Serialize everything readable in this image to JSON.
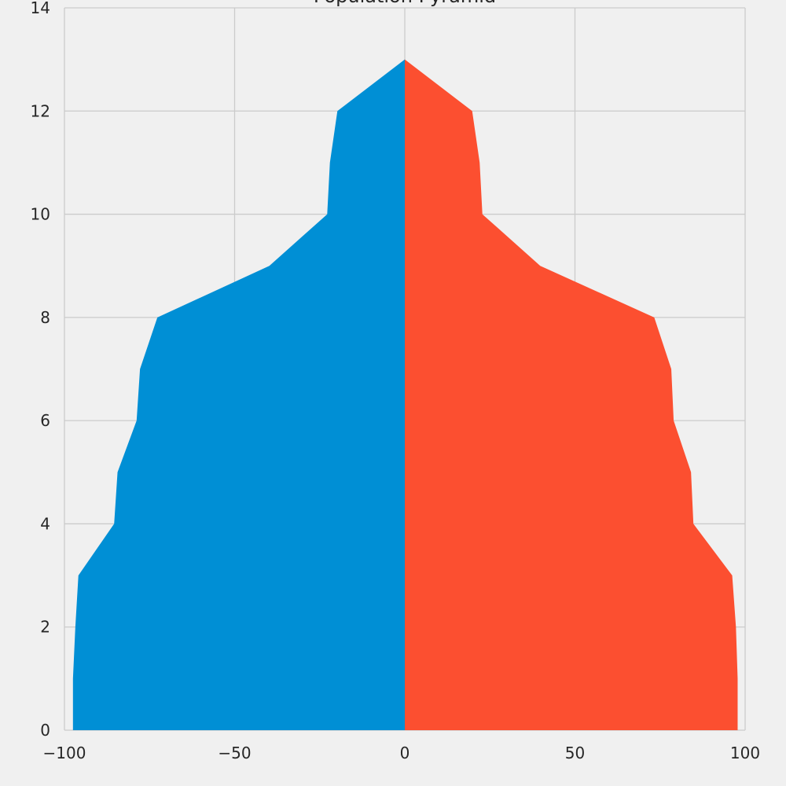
{
  "chart_data": {
    "type": "area",
    "title": "Population Pyramid",
    "xlabel": "",
    "ylabel": "",
    "xlim": [
      -100,
      100
    ],
    "ylim": [
      0,
      14
    ],
    "x_ticks": [
      -100,
      -50,
      0,
      50,
      100
    ],
    "x_tick_labels": [
      "−100",
      "−50",
      "0",
      "50",
      "100"
    ],
    "y_ticks": [
      0,
      2,
      4,
      6,
      8,
      10,
      12,
      14
    ],
    "y_tick_labels": [
      "0",
      "2",
      "4",
      "6",
      "8",
      "10",
      "12",
      "14"
    ],
    "grid": true,
    "y": [
      0,
      1,
      2,
      3,
      4,
      5,
      6,
      7,
      8,
      9,
      10,
      11,
      12,
      13
    ],
    "series": [
      {
        "color": "#008fd5",
        "values": [
          -97.5,
          -97.5,
          -96.8,
          -95.9,
          -85.4,
          -84.4,
          -78.8,
          -77.8,
          -72.7,
          -39.8,
          -22.8,
          -22.0,
          -19.8,
          0
        ]
      },
      {
        "color": "#fc4f30",
        "values": [
          97.8,
          97.8,
          97.3,
          96.2,
          84.8,
          84.1,
          79.0,
          78.3,
          73.3,
          39.8,
          22.8,
          22.0,
          19.8,
          0
        ]
      }
    ]
  }
}
